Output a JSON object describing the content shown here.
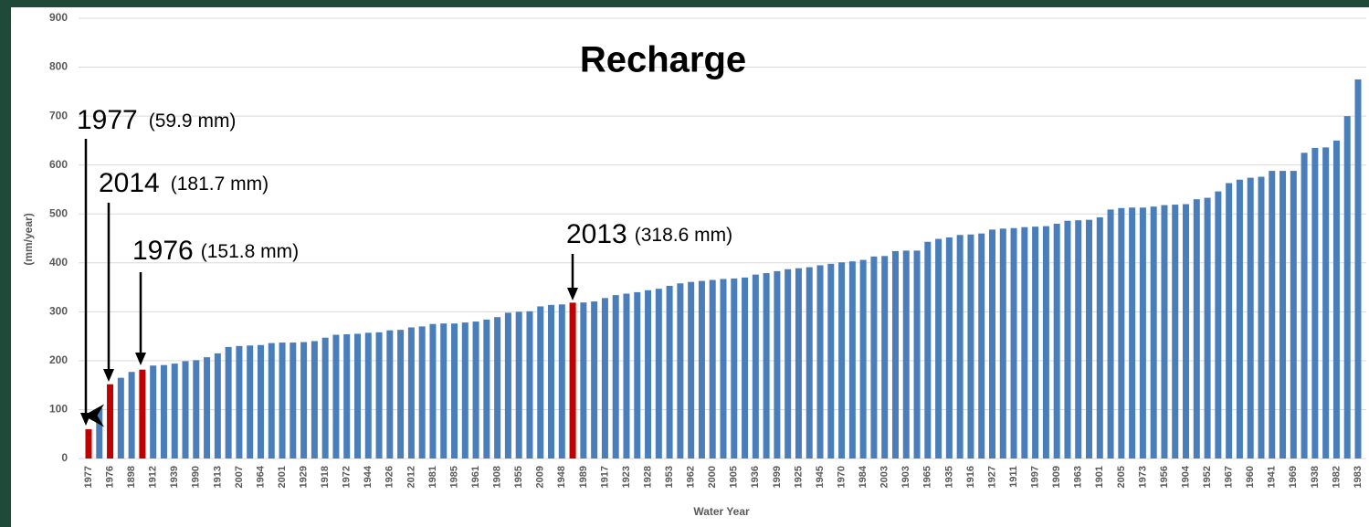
{
  "chart_data": {
    "type": "bar",
    "title": "Recharge",
    "y_label": "(mm/year)",
    "x_label": "Water Year",
    "categories": [
      "1977",
      null,
      "1976",
      null,
      "1898",
      null,
      "1912",
      null,
      "1939",
      null,
      "1990",
      null,
      "1913",
      null,
      "2007",
      null,
      "1964",
      null,
      "2001",
      null,
      "1929",
      null,
      "1918",
      null,
      "1972",
      null,
      "1944",
      null,
      "1926",
      null,
      "2012",
      null,
      "1981",
      null,
      "1985",
      null,
      "1961",
      null,
      "1908",
      null,
      "1955",
      null,
      "2009",
      null,
      "1948",
      null,
      "1989",
      null,
      "1917",
      null,
      "1923",
      null,
      "1928",
      null,
      "1953",
      null,
      "1962",
      null,
      "2000",
      null,
      "1905",
      null,
      "1936",
      null,
      "1999",
      null,
      "1925",
      null,
      "1945",
      null,
      "1970",
      null,
      "1984",
      null,
      "2003",
      null,
      "1903",
      null,
      "1965",
      null,
      "1935",
      null,
      "1916",
      null,
      "1927",
      null,
      "1911",
      null,
      "1997",
      null,
      "1909",
      null,
      "1963",
      null,
      "1901",
      null,
      "2005",
      null,
      "1973",
      null,
      "1956",
      null,
      "1904",
      null,
      "1952",
      null,
      "1967",
      null,
      "1960",
      null,
      "1941",
      null,
      "1969",
      null,
      "1938",
      null,
      "1982",
      null,
      "1983"
    ],
    "values": [
      59.9,
      103,
      151.8,
      165,
      177,
      181.7,
      190,
      191,
      194,
      199,
      201,
      207,
      215,
      228,
      230,
      231,
      232,
      236,
      237,
      237,
      238,
      240,
      247,
      253,
      254,
      255,
      257,
      258,
      262,
      263,
      268,
      270,
      275,
      276,
      276,
      278,
      280,
      284,
      289,
      298,
      300,
      301,
      311,
      314,
      315,
      318.6,
      319,
      321,
      328,
      334,
      337,
      340,
      344,
      347,
      353,
      358,
      361,
      363,
      365,
      367,
      368,
      370,
      376,
      379,
      383,
      387,
      389,
      391,
      395,
      398,
      401,
      403,
      406,
      413,
      414,
      424,
      425,
      425,
      443,
      449,
      452,
      457,
      458,
      460,
      468,
      470,
      471,
      473,
      474,
      475,
      480,
      486,
      487,
      488,
      493,
      509,
      512,
      513,
      513,
      515,
      518,
      519,
      520,
      530,
      533,
      546,
      563,
      570,
      574,
      576,
      588,
      588,
      588,
      625,
      635,
      636,
      650,
      700,
      775
    ],
    "color": "#4a7ebb",
    "highlight_color": "#c00000",
    "highlighted": [
      0,
      2,
      5,
      45
    ],
    "ylim": [
      0,
      900
    ],
    "yticks": [
      0,
      100,
      200,
      300,
      400,
      500,
      600,
      700,
      800,
      900
    ],
    "grid": true,
    "annotations": [
      {
        "label": "1977",
        "detail": "(59.9 mm)"
      },
      {
        "label": "2014",
        "detail": "(181.7 mm)"
      },
      {
        "label": "1976",
        "detail": "(151.8 mm)"
      },
      {
        "label": "2013",
        "detail": "(318.6 mm)"
      }
    ]
  }
}
